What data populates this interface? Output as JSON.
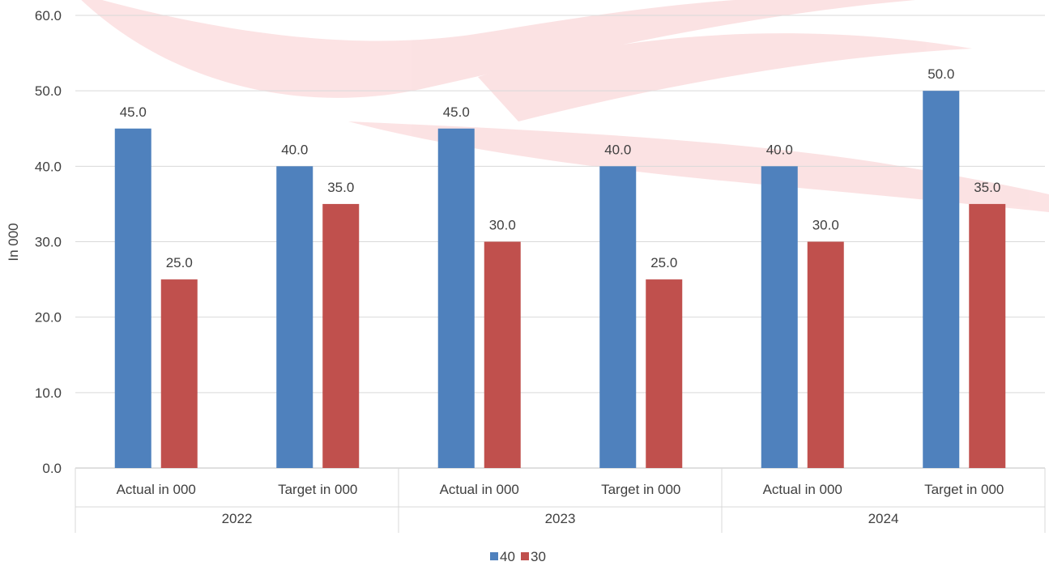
{
  "chart_data": {
    "type": "bar",
    "title": "",
    "ylabel": "In 000",
    "xlabel": "",
    "ylim": [
      0,
      60
    ],
    "yticks": [
      "0.0",
      "10.0",
      "20.0",
      "30.0",
      "40.0",
      "50.0",
      "60.0"
    ],
    "groups": [
      {
        "label": "2022",
        "categories": [
          "Actual in 000",
          "Target in 000"
        ]
      },
      {
        "label": "2023",
        "categories": [
          "Actual in 000",
          "Target in 000"
        ]
      },
      {
        "label": "2024",
        "categories": [
          "Actual in 000",
          "Target in 000"
        ]
      }
    ],
    "categories": [
      "Actual in 000",
      "Target in 000",
      "Actual in 000",
      "Target in 000",
      "Actual in 000",
      "Target in 000"
    ],
    "series": [
      {
        "name": "40",
        "color": "#4f81bd",
        "values": [
          45.0,
          40.0,
          45.0,
          40.0,
          40.0,
          50.0
        ],
        "labels": [
          "45.0",
          "40.0",
          "45.0",
          "40.0",
          "40.0",
          "50.0"
        ]
      },
      {
        "name": "30",
        "color": "#c0504d",
        "values": [
          25.0,
          35.0,
          30.0,
          25.0,
          30.0,
          35.0
        ],
        "labels": [
          "25.0",
          "35.0",
          "30.0",
          "25.0",
          "30.0",
          "35.0"
        ]
      }
    ],
    "grid": true,
    "legend_position": "bottom",
    "watermark": "red swoosh logo behind plot"
  }
}
